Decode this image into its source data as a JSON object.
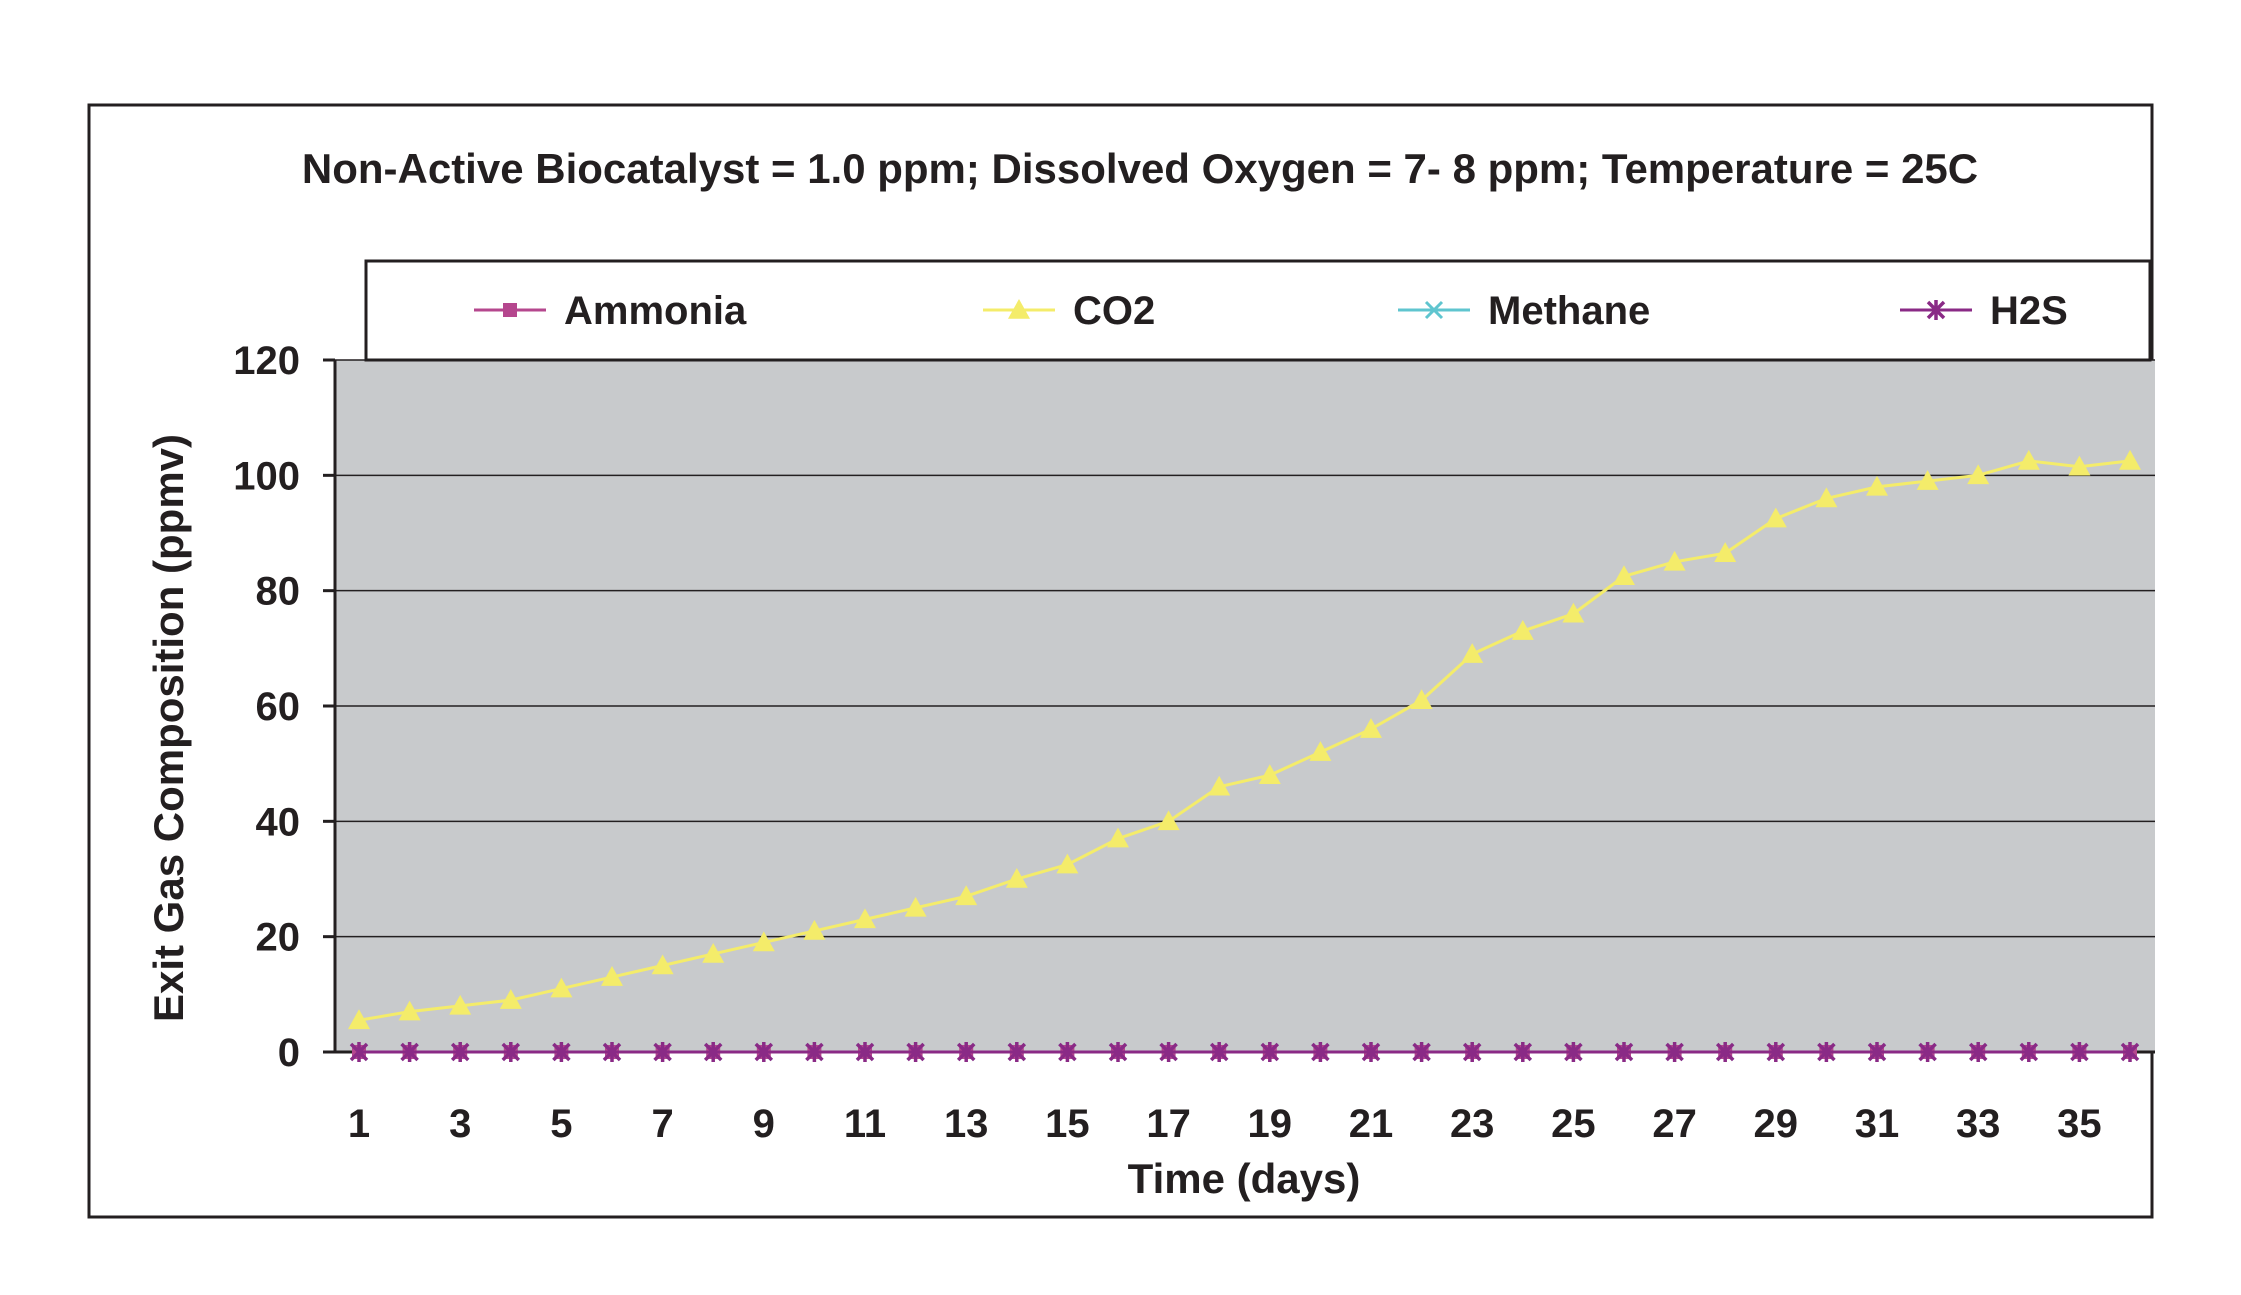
{
  "chart_data": {
    "type": "line",
    "title": "Non-Active Biocatalyst = 1.0 ppm; Dissolved Oxygen = 7- 8 ppm; Temperature = 25C",
    "xlabel": "Time (days)",
    "ylabel": "Exit Gas Composition (ppmv)",
    "x": [
      1,
      2,
      3,
      4,
      5,
      6,
      7,
      8,
      9,
      10,
      11,
      12,
      13,
      14,
      15,
      16,
      17,
      18,
      19,
      20,
      21,
      22,
      23,
      24,
      25,
      26,
      27,
      28,
      29,
      30,
      31,
      32,
      33,
      34,
      35,
      36
    ],
    "x_tick_labels": [
      "1",
      "3",
      "5",
      "7",
      "9",
      "11",
      "13",
      "15",
      "17",
      "19",
      "21",
      "23",
      "25",
      "27",
      "29",
      "31",
      "33",
      "35"
    ],
    "x_tick_values": [
      1,
      3,
      5,
      7,
      9,
      11,
      13,
      15,
      17,
      19,
      21,
      23,
      25,
      27,
      29,
      31,
      33,
      35
    ],
    "ylim": [
      0,
      120
    ],
    "y_ticks": [
      0,
      20,
      40,
      60,
      80,
      100,
      120
    ],
    "grid": true,
    "legend_position": "top",
    "plot_background": "#c8cacc",
    "series": [
      {
        "name": "Ammonia",
        "color": "#b5478e",
        "marker": "square",
        "values": [
          0,
          0,
          0,
          0,
          0,
          0,
          0,
          0,
          0,
          0,
          0,
          0,
          0,
          0,
          0,
          0,
          0,
          0,
          0,
          0,
          0,
          0,
          0,
          0,
          0,
          0,
          0,
          0,
          0,
          0,
          0,
          0,
          0,
          0,
          0,
          0
        ]
      },
      {
        "name": "CO2",
        "color": "#f4ec6a",
        "marker": "triangle",
        "values": [
          5.5,
          7,
          8,
          9,
          11,
          13,
          15,
          17,
          19,
          21,
          23,
          25,
          27,
          30,
          32.5,
          37,
          40,
          46,
          48,
          52,
          56,
          61,
          69,
          73,
          76,
          82.5,
          85,
          86.5,
          92.5,
          96,
          98,
          99,
          100,
          102.5,
          101.5,
          102.5
        ]
      },
      {
        "name": "Methane",
        "color": "#5fc5cf",
        "marker": "x",
        "values": [
          0,
          0,
          0,
          0,
          0,
          0,
          0,
          0,
          0,
          0,
          0,
          0,
          0,
          0,
          0,
          0,
          0,
          0,
          0,
          0,
          0,
          0,
          0,
          0,
          0,
          0,
          0,
          0,
          0,
          0,
          0,
          0,
          0,
          0,
          0,
          0
        ]
      },
      {
        "name": "H2S",
        "color": "#8a2a86",
        "marker": "star",
        "values": [
          0,
          0,
          0,
          0,
          0,
          0,
          0,
          0,
          0,
          0,
          0,
          0,
          0,
          0,
          0,
          0,
          0,
          0,
          0,
          0,
          0,
          0,
          0,
          0,
          0,
          0,
          0,
          0,
          0,
          0,
          0,
          0,
          0,
          0,
          0,
          0
        ]
      }
    ]
  }
}
